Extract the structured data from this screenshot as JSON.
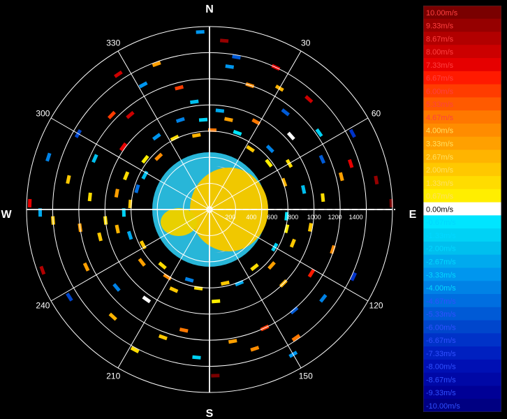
{
  "chart_data": {
    "type": "polar-ppi",
    "title": "",
    "cardinals": [
      "N",
      "E",
      "S",
      "W"
    ],
    "azimuth_labels": [
      {
        "deg": 30,
        "text": "30"
      },
      {
        "deg": 60,
        "text": "60"
      },
      {
        "deg": 120,
        "text": "120"
      },
      {
        "deg": 150,
        "text": "150"
      },
      {
        "deg": 210,
        "text": "210"
      },
      {
        "deg": 240,
        "text": "240"
      },
      {
        "deg": 300,
        "text": "300"
      },
      {
        "deg": 330,
        "text": "330"
      }
    ],
    "spoke_angles": [
      0,
      30,
      60,
      90,
      120,
      150,
      180,
      210,
      240,
      270,
      300,
      330
    ],
    "range_max": 1750,
    "range_rings": [
      250,
      500,
      750,
      1000,
      1250,
      1500,
      1750
    ],
    "range_labels": [
      {
        "value": 200,
        "text": "200"
      },
      {
        "value": 400,
        "text": "400"
      },
      {
        "value": 600,
        "text": "600"
      },
      {
        "value": 800,
        "text": "800"
      },
      {
        "value": 1000,
        "text": "1000"
      },
      {
        "value": 1200,
        "text": "1200"
      },
      {
        "value": 1400,
        "text": "1400"
      }
    ],
    "colorbar": {
      "unit": "m/s",
      "min": -10,
      "max": 10,
      "levels": [
        "10.00m/s",
        "9.33m/s",
        "8.67m/s",
        "8.00m/s",
        "7.33m/s",
        "6.67m/s",
        "6.00m/s",
        "5.33m/s",
        "4.67m/s",
        "4.00m/s",
        "3.33m/s",
        "2.67m/s",
        "2.00m/s",
        "1.33m/s",
        "0.67m/s",
        "0.00m/s",
        "-0.67m/s",
        "-1.33m/s",
        "-2.00m/s",
        "-2.67m/s",
        "-3.33m/s",
        "-4.00m/s",
        "-4.67m/s",
        "-5.33m/s",
        "-6.00m/s",
        "-6.67m/s",
        "-7.33m/s",
        "-8.00m/s",
        "-8.67m/s",
        "-9.33m/s",
        "-10.00m/s"
      ],
      "colors": [
        "#7a0000",
        "#960000",
        "#b20000",
        "#cc0000",
        "#e60000",
        "#ff1a00",
        "#ff3c00",
        "#ff5a00",
        "#ff7800",
        "#ff8c00",
        "#ffa000",
        "#ffb400",
        "#ffc800",
        "#ffdc00",
        "#ffee00",
        "#ffffff",
        "#00e5ff",
        "#00d2f5",
        "#00bfee",
        "#00aaee",
        "#0096ee",
        "#0082e6",
        "#006ee0",
        "#005ad6",
        "#0046cc",
        "#0032c8",
        "#0020c0",
        "#0010b4",
        "#0008a6",
        "#000096",
        "#000082"
      ]
    },
    "samples": [
      {
        "az": 5,
        "r": 1620,
        "v": 9.3
      },
      {
        "az": 10,
        "r": 1480,
        "v": -5.3
      },
      {
        "az": 8,
        "r": 1380,
        "v": -3.3
      },
      {
        "az": 18,
        "r": 1250,
        "v": 4.0
      },
      {
        "az": 25,
        "r": 1500,
        "v": 7.3
      },
      {
        "az": 30,
        "r": 1340,
        "v": 2.7
      },
      {
        "az": 38,
        "r": 1180,
        "v": -5.3
      },
      {
        "az": 42,
        "r": 1420,
        "v": 8.0
      },
      {
        "az": 48,
        "r": 1050,
        "v": 0.0
      },
      {
        "az": 55,
        "r": 1280,
        "v": -1.3
      },
      {
        "az": 62,
        "r": 1550,
        "v": -6.7
      },
      {
        "az": 66,
        "r": 1180,
        "v": -5.3
      },
      {
        "az": 72,
        "r": 1420,
        "v": 7.3
      },
      {
        "az": 76,
        "r": 1300,
        "v": 3.3
      },
      {
        "az": 80,
        "r": 1620,
        "v": 9.3
      },
      {
        "az": 84,
        "r": 1090,
        "v": 1.3
      },
      {
        "az": 88,
        "r": 1740,
        "v": 10.0
      },
      {
        "az": 95,
        "r": 740,
        "v": -0.7
      },
      {
        "az": 100,
        "r": 980,
        "v": 2.0
      },
      {
        "az": 108,
        "r": 1240,
        "v": 4.0
      },
      {
        "az": 115,
        "r": 1520,
        "v": -6.7
      },
      {
        "az": 122,
        "r": 1150,
        "v": 6.7
      },
      {
        "az": 128,
        "r": 1380,
        "v": -4.0
      },
      {
        "az": 135,
        "r": 1000,
        "v": 2.7
      },
      {
        "az": 140,
        "r": 1260,
        "v": -5.3
      },
      {
        "az": 146,
        "r": 1480,
        "v": 4.7
      },
      {
        "az": 150,
        "r": 1600,
        "v": -3.3
      },
      {
        "az": 155,
        "r": 1250,
        "v": 6.0
      },
      {
        "az": 162,
        "r": 1400,
        "v": 4.0
      },
      {
        "az": 170,
        "r": 1280,
        "v": 3.3
      },
      {
        "az": 178,
        "r": 1590,
        "v": 10.0
      },
      {
        "az": 185,
        "r": 1420,
        "v": -1.3
      },
      {
        "az": 192,
        "r": 1180,
        "v": 4.7
      },
      {
        "az": 200,
        "r": 1300,
        "v": 2.0
      },
      {
        "az": 208,
        "r": 1520,
        "v": 1.3
      },
      {
        "az": 215,
        "r": 1050,
        "v": 0.0
      },
      {
        "az": 222,
        "r": 1380,
        "v": 2.7
      },
      {
        "az": 230,
        "r": 1160,
        "v": -4.0
      },
      {
        "az": 238,
        "r": 1580,
        "v": -6.0
      },
      {
        "az": 245,
        "r": 1300,
        "v": 3.3
      },
      {
        "az": 250,
        "r": 1700,
        "v": 8.7
      },
      {
        "az": 256,
        "r": 1080,
        "v": 2.0
      },
      {
        "az": 262,
        "r": 1250,
        "v": 3.3
      },
      {
        "az": 266,
        "r": 1500,
        "v": 2.0
      },
      {
        "az": 269,
        "r": 1620,
        "v": -2.7
      },
      {
        "az": 272,
        "r": 1720,
        "v": 7.3
      },
      {
        "az": 276,
        "r": 1150,
        "v": 1.3
      },
      {
        "az": 282,
        "r": 1380,
        "v": 2.0
      },
      {
        "az": 288,
        "r": 1620,
        "v": -4.0
      },
      {
        "az": 294,
        "r": 1200,
        "v": -2.0
      },
      {
        "az": 300,
        "r": 1450,
        "v": -6.0
      },
      {
        "az": 306,
        "r": 1020,
        "v": 7.3
      },
      {
        "az": 314,
        "r": 1300,
        "v": 6.0
      },
      {
        "az": 320,
        "r": 1180,
        "v": 8.0
      },
      {
        "az": 326,
        "r": 1560,
        "v": 8.0
      },
      {
        "az": 332,
        "r": 1350,
        "v": -3.3
      },
      {
        "az": 340,
        "r": 1480,
        "v": 3.3
      },
      {
        "az": 346,
        "r": 1200,
        "v": 6.0
      },
      {
        "az": 352,
        "r": 1040,
        "v": -2.0
      },
      {
        "az": 357,
        "r": 1700,
        "v": -3.3
      },
      {
        "az": 12,
        "r": 880,
        "v": 3.3
      },
      {
        "az": 20,
        "r": 780,
        "v": -0.7
      },
      {
        "az": 28,
        "r": 950,
        "v": 4.7
      },
      {
        "az": 34,
        "r": 700,
        "v": 2.0
      },
      {
        "az": 45,
        "r": 820,
        "v": -4.0
      },
      {
        "az": 52,
        "r": 720,
        "v": 0.7
      },
      {
        "az": 60,
        "r": 880,
        "v": 1.3
      },
      {
        "az": 70,
        "r": 760,
        "v": 2.7
      },
      {
        "az": 78,
        "r": 920,
        "v": -2.0
      },
      {
        "az": 104,
        "r": 760,
        "v": 0.7
      },
      {
        "az": 112,
        "r": 860,
        "v": 2.0
      },
      {
        "az": 120,
        "r": 720,
        "v": -1.3
      },
      {
        "az": 132,
        "r": 800,
        "v": 3.3
      },
      {
        "az": 142,
        "r": 700,
        "v": 1.3
      },
      {
        "az": 158,
        "r": 760,
        "v": -2.7
      },
      {
        "az": 168,
        "r": 720,
        "v": 2.0
      },
      {
        "az": 176,
        "r": 880,
        "v": 0.7
      },
      {
        "az": 188,
        "r": 760,
        "v": 1.3
      },
      {
        "az": 196,
        "r": 700,
        "v": -4.0
      },
      {
        "az": 204,
        "r": 840,
        "v": 2.0
      },
      {
        "az": 212,
        "r": 760,
        "v": 4.0
      },
      {
        "az": 220,
        "r": 700,
        "v": 1.3
      },
      {
        "az": 232,
        "r": 820,
        "v": 3.3
      },
      {
        "az": 242,
        "r": 720,
        "v": 2.0
      },
      {
        "az": 252,
        "r": 800,
        "v": -2.7
      },
      {
        "az": 258,
        "r": 900,
        "v": 2.7
      },
      {
        "az": 264,
        "r": 1000,
        "v": 1.3
      },
      {
        "az": 268,
        "r": 820,
        "v": -1.3
      },
      {
        "az": 274,
        "r": 760,
        "v": 2.0
      },
      {
        "az": 280,
        "r": 900,
        "v": 3.3
      },
      {
        "az": 286,
        "r": 720,
        "v": -4.7
      },
      {
        "az": 292,
        "r": 860,
        "v": 1.3
      },
      {
        "az": 298,
        "r": 700,
        "v": -2.0
      },
      {
        "az": 308,
        "r": 780,
        "v": 0.7
      },
      {
        "az": 316,
        "r": 700,
        "v": 4.0
      },
      {
        "az": 324,
        "r": 860,
        "v": -3.3
      },
      {
        "az": 334,
        "r": 760,
        "v": 1.3
      },
      {
        "az": 342,
        "r": 900,
        "v": -4.0
      },
      {
        "az": 350,
        "r": 720,
        "v": 2.7
      },
      {
        "az": 356,
        "r": 860,
        "v": -1.3
      },
      {
        "az": 2,
        "r": 760,
        "v": 4.7
      },
      {
        "az": 6,
        "r": 950,
        "v": -2.7
      }
    ]
  }
}
